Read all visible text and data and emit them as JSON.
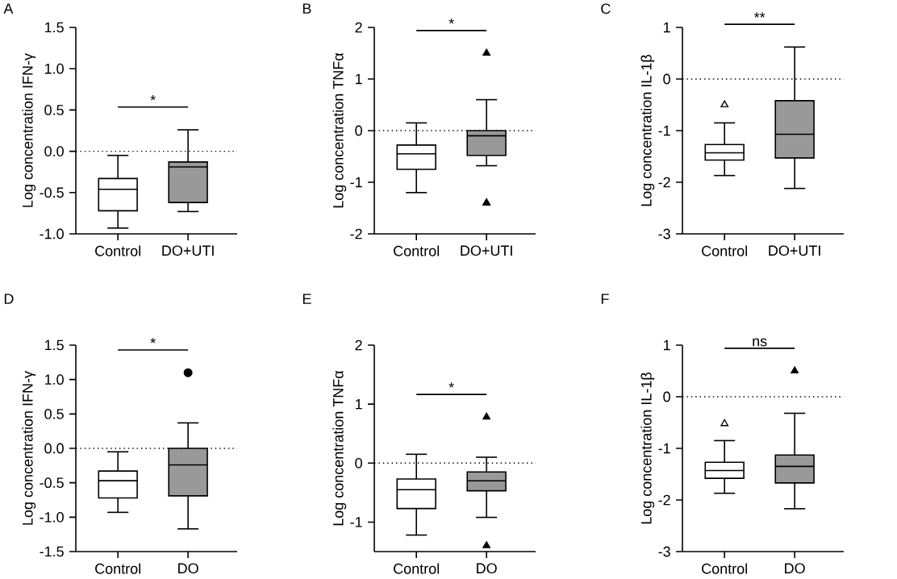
{
  "chart_data": [
    {
      "type": "box",
      "title": "A",
      "ylabel": "Log concentration IFN-γ",
      "categories": [
        "Control",
        "DO+UTI"
      ],
      "colors": [
        "#ffffff",
        "#999999"
      ],
      "boxes": [
        {
          "low": -0.93,
          "q1": -0.72,
          "median": -0.46,
          "q3": -0.33,
          "high": -0.05
        },
        {
          "low": -0.73,
          "q1": -0.62,
          "median": -0.19,
          "q3": -0.13,
          "high": 0.26
        }
      ],
      "ylim": [
        -1.0,
        1.5
      ],
      "yticks": [
        {
          "value": -1.0,
          "label": "-1.0"
        },
        {
          "value": -0.5,
          "label": "-0.5"
        },
        {
          "value": 0,
          "label": "0.0"
        },
        {
          "value": 0.5,
          "label": "0.5"
        },
        {
          "value": 1.0,
          "label": "1.0"
        },
        {
          "value": 1.5,
          "label": "1.5"
        }
      ],
      "ref_lines": [
        {
          "axis": "y",
          "value": 0,
          "line_style": "dotted"
        }
      ],
      "annotations": [
        "*"
      ]
    },
    {
      "type": "box",
      "title": "B",
      "ylabel": "Log concentration TNFα",
      "categories": [
        "Control",
        "DO+UTI"
      ],
      "colors": [
        "#ffffff",
        "#999999"
      ],
      "marker": "triangle",
      "boxes": [
        {
          "low": -1.2,
          "q1": -0.75,
          "median": -0.45,
          "q3": -0.28,
          "high": 0.15
        },
        {
          "low": -0.68,
          "q1": -0.48,
          "median": -0.1,
          "q3": 0.0,
          "high": 0.6,
          "outliers": [
            1.5,
            -1.4,
            -1.4
          ]
        }
      ],
      "ylim": [
        -2,
        2
      ],
      "yticks": [
        -2,
        -1,
        0,
        1,
        2
      ],
      "ref_lines": [
        {
          "axis": "y",
          "value": 0,
          "line_style": "dotted"
        }
      ],
      "annotations": [
        "*"
      ]
    },
    {
      "type": "box",
      "title": "C",
      "ylabel": "Log concentration IL-1β",
      "categories": [
        "Control",
        "DO+UTI"
      ],
      "colors": [
        "#ffffff",
        "#999999"
      ],
      "marker": "triangle",
      "boxes": [
        {
          "low": -1.87,
          "q1": -1.57,
          "median": -1.43,
          "q3": -1.27,
          "high": -0.85,
          "outliers": [
            -0.5
          ]
        },
        {
          "low": -2.12,
          "q1": -1.53,
          "median": -1.07,
          "q3": -0.42,
          "high": 0.62
        }
      ],
      "ylim": [
        -3,
        1
      ],
      "yticks": [
        -3,
        -2,
        -1,
        0,
        1
      ],
      "ref_lines": [
        {
          "axis": "y",
          "value": 0,
          "line_style": "dotted"
        }
      ],
      "annotations": [
        "**"
      ]
    },
    {
      "type": "box",
      "title": "D",
      "ylabel": "Log concentration IFN-γ",
      "categories": [
        "Control",
        "DO"
      ],
      "colors": [
        "#ffffff",
        "#999999"
      ],
      "marker": "circle",
      "boxes": [
        {
          "low": -0.93,
          "q1": -0.72,
          "median": -0.47,
          "q3": -0.33,
          "high": -0.05
        },
        {
          "low": -1.17,
          "q1": -0.69,
          "median": -0.24,
          "q3": 0.0,
          "high": 0.37,
          "outliers": [
            1.1
          ]
        }
      ],
      "ylim": [
        -1.5,
        1.5
      ],
      "yticks": [
        {
          "value": -1.5,
          "label": "-1.5"
        },
        {
          "value": -1.0,
          "label": "-1.0"
        },
        {
          "value": -0.5,
          "label": "-0.5"
        },
        {
          "value": 0,
          "label": "0.0"
        },
        {
          "value": 0.5,
          "label": "0.5"
        },
        {
          "value": 1.0,
          "label": "1.0"
        },
        {
          "value": 1.5,
          "label": "1.5"
        }
      ],
      "ref_lines": [
        {
          "axis": "y",
          "value": 0,
          "line_style": "dotted"
        }
      ],
      "annotations": [
        "*"
      ]
    },
    {
      "type": "box",
      "title": "E",
      "ylabel": "Log concentration TNFα",
      "categories": [
        "Control",
        "DO"
      ],
      "colors": [
        "#ffffff",
        "#999999"
      ],
      "marker": "triangle",
      "boxes": [
        {
          "low": -1.22,
          "q1": -0.77,
          "median": -0.45,
          "q3": -0.27,
          "high": 0.15
        },
        {
          "low": -0.92,
          "q1": -0.47,
          "median": -0.3,
          "q3": -0.15,
          "high": 0.1,
          "outliers": [
            0.78,
            -1.4
          ]
        }
      ],
      "ylim": [
        -1.5,
        2
      ],
      "yticks": [
        -1,
        0,
        1,
        2
      ],
      "ref_lines": [
        {
          "axis": "y",
          "value": 0,
          "line_style": "dotted"
        }
      ],
      "annotations": [
        "*"
      ]
    },
    {
      "type": "box",
      "title": "F",
      "ylabel": "Log concentration IL-1β",
      "categories": [
        "Control",
        "DO"
      ],
      "colors": [
        "#ffffff",
        "#999999"
      ],
      "marker": "triangle",
      "boxes": [
        {
          "low": -1.87,
          "q1": -1.58,
          "median": -1.43,
          "q3": -1.27,
          "high": -0.85,
          "outliers": [
            -0.52
          ]
        },
        {
          "low": -2.17,
          "q1": -1.67,
          "median": -1.35,
          "q3": -1.13,
          "high": -0.32,
          "outliers": [
            0.5
          ]
        }
      ],
      "ylim": [
        -3,
        1
      ],
      "yticks": [
        -3,
        -2,
        -1,
        0,
        1
      ],
      "ref_lines": [
        {
          "axis": "y",
          "value": 0,
          "line_style": "dotted"
        }
      ],
      "annotations": [
        "ns"
      ]
    }
  ]
}
